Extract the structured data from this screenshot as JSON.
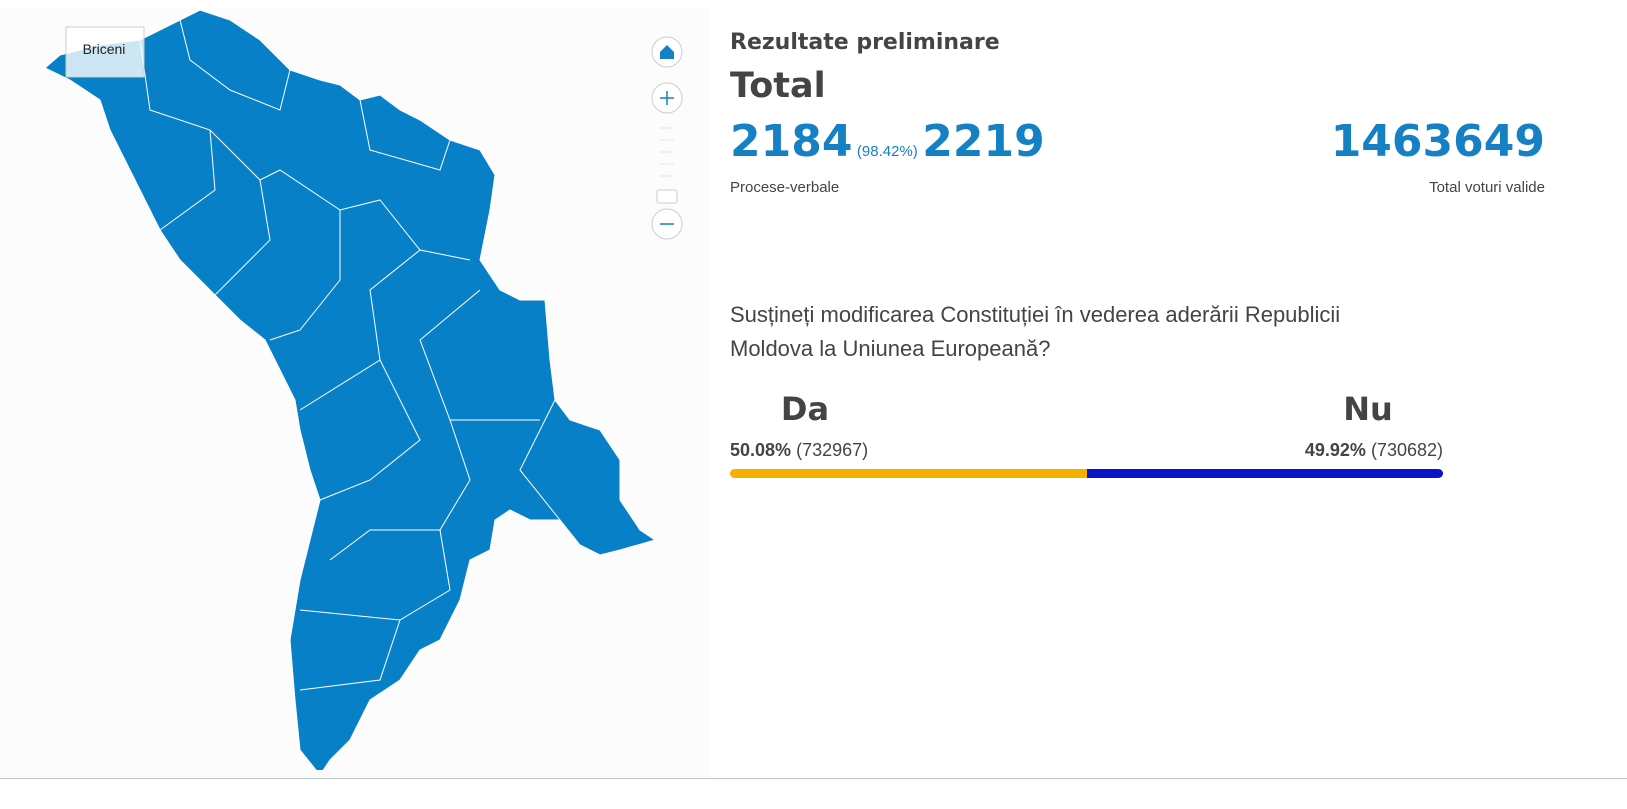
{
  "header": {
    "subtitle": "Rezultate preliminare",
    "title": "Total"
  },
  "stats": {
    "counted": 2184,
    "counted_percent_label": "(98.42%)",
    "total": 2219,
    "counted_caption": "Procese-verbale",
    "valid_votes": 1463649,
    "valid_votes_caption": "Total voturi valide"
  },
  "question": "Susțineți modificarea Constituției în vederea aderării Republicii Moldova la Uniunea Europeană?",
  "options": [
    {
      "name": "Da",
      "percent": 50.08,
      "percent_label": "50.08%",
      "votes_label": "(732967)",
      "color": "#f5b000"
    },
    {
      "name": "Nu",
      "percent": 49.92,
      "percent_label": "49.92%",
      "votes_label": "(730682)",
      "color": "#0a14c8"
    }
  ],
  "map": {
    "tooltip": "Briceni"
  }
}
